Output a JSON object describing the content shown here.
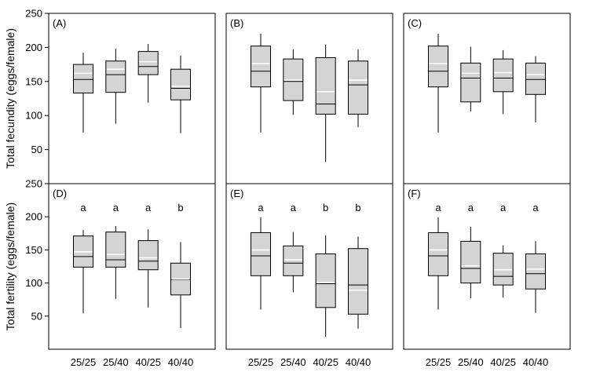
{
  "chart_data": {
    "type": "box",
    "rows": [
      {
        "ylabel": "Total fecundity (eggs/female)"
      },
      {
        "ylabel": "Total fertility (eggs/female)"
      }
    ],
    "ylim": [
      0,
      250
    ],
    "yticks": [
      50,
      100,
      150,
      200,
      250
    ],
    "categories": [
      "25/25",
      "25/40",
      "40/25",
      "40/40"
    ],
    "panels": [
      {
        "label": "(A)",
        "letters": [],
        "boxes": [
          {
            "category": "25/25",
            "min": 75,
            "q1": 133,
            "median": 153,
            "mean": 162,
            "q3": 175,
            "max": 192
          },
          {
            "category": "25/40",
            "min": 88,
            "q1": 134,
            "median": 160,
            "mean": 168,
            "q3": 180,
            "max": 198
          },
          {
            "category": "40/25",
            "min": 119,
            "q1": 160,
            "median": 172,
            "mean": 179,
            "q3": 194,
            "max": 205
          },
          {
            "category": "40/40",
            "min": 74,
            "q1": 123,
            "median": 140,
            "mean": 143,
            "q3": 168,
            "max": 188
          }
        ]
      },
      {
        "label": "(B)",
        "letters": [],
        "boxes": [
          {
            "category": "25/25",
            "min": 75,
            "q1": 142,
            "median": 165,
            "mean": 176,
            "q3": 202,
            "max": 220
          },
          {
            "category": "25/40",
            "min": 101,
            "q1": 122,
            "median": 150,
            "mean": 152,
            "q3": 183,
            "max": 197
          },
          {
            "category": "40/25",
            "min": 32,
            "q1": 102,
            "median": 117,
            "mean": 135,
            "q3": 185,
            "max": 204
          },
          {
            "category": "40/40",
            "min": 83,
            "q1": 102,
            "median": 145,
            "mean": 152,
            "q3": 180,
            "max": 197
          }
        ]
      },
      {
        "label": "(C)",
        "letters": [],
        "boxes": [
          {
            "category": "25/25",
            "min": 75,
            "q1": 142,
            "median": 165,
            "mean": 176,
            "q3": 202,
            "max": 220
          },
          {
            "category": "25/40",
            "min": 106,
            "q1": 120,
            "median": 155,
            "mean": 162,
            "q3": 177,
            "max": 201
          },
          {
            "category": "40/25",
            "min": 102,
            "q1": 135,
            "median": 155,
            "mean": 163,
            "q3": 183,
            "max": 196
          },
          {
            "category": "40/40",
            "min": 90,
            "q1": 131,
            "median": 153,
            "mean": 160,
            "q3": 177,
            "max": 187
          }
        ]
      },
      {
        "label": "(D)",
        "letters": [
          "a",
          "a",
          "a",
          "b"
        ],
        "boxes": [
          {
            "category": "25/25",
            "min": 54,
            "q1": 124,
            "median": 140,
            "mean": 147,
            "q3": 171,
            "max": 180
          },
          {
            "category": "25/40",
            "min": 76,
            "q1": 124,
            "median": 135,
            "mean": 143,
            "q3": 177,
            "max": 186
          },
          {
            "category": "40/25",
            "min": 63,
            "q1": 120,
            "median": 133,
            "mean": 138,
            "q3": 164,
            "max": 181
          },
          {
            "category": "40/40",
            "min": 32,
            "q1": 82,
            "median": 105,
            "mean": 106,
            "q3": 130,
            "max": 162
          }
        ]
      },
      {
        "label": "(E)",
        "letters": [
          "a",
          "a",
          "b",
          "b"
        ],
        "boxes": [
          {
            "category": "25/25",
            "min": 60,
            "q1": 111,
            "median": 141,
            "mean": 150,
            "q3": 176,
            "max": 199
          },
          {
            "category": "25/40",
            "min": 86,
            "q1": 111,
            "median": 130,
            "mean": 135,
            "q3": 156,
            "max": 177
          },
          {
            "category": "40/25",
            "min": 19,
            "q1": 63,
            "median": 99,
            "mean": 101,
            "q3": 144,
            "max": 172
          },
          {
            "category": "40/40",
            "min": 31,
            "q1": 53,
            "median": 97,
            "mean": 89,
            "q3": 152,
            "max": 170
          }
        ]
      },
      {
        "label": "(F)",
        "letters": [
          "a",
          "a",
          "a",
          "a"
        ],
        "boxes": [
          {
            "category": "25/25",
            "min": 60,
            "q1": 111,
            "median": 141,
            "mean": 150,
            "q3": 176,
            "max": 199
          },
          {
            "category": "25/40",
            "min": 77,
            "q1": 100,
            "median": 122,
            "mean": 126,
            "q3": 163,
            "max": 185
          },
          {
            "category": "40/25",
            "min": 78,
            "q1": 97,
            "median": 110,
            "mean": 120,
            "q3": 145,
            "max": 157
          },
          {
            "category": "40/40",
            "min": 55,
            "q1": 91,
            "median": 114,
            "mean": 121,
            "q3": 144,
            "max": 163
          }
        ]
      }
    ],
    "colors": {
      "box_fill": "#d4d4d4",
      "stroke": "#000000",
      "median_line": "#000000",
      "mean_line": "#ffffff",
      "background": "#ffffff"
    }
  }
}
